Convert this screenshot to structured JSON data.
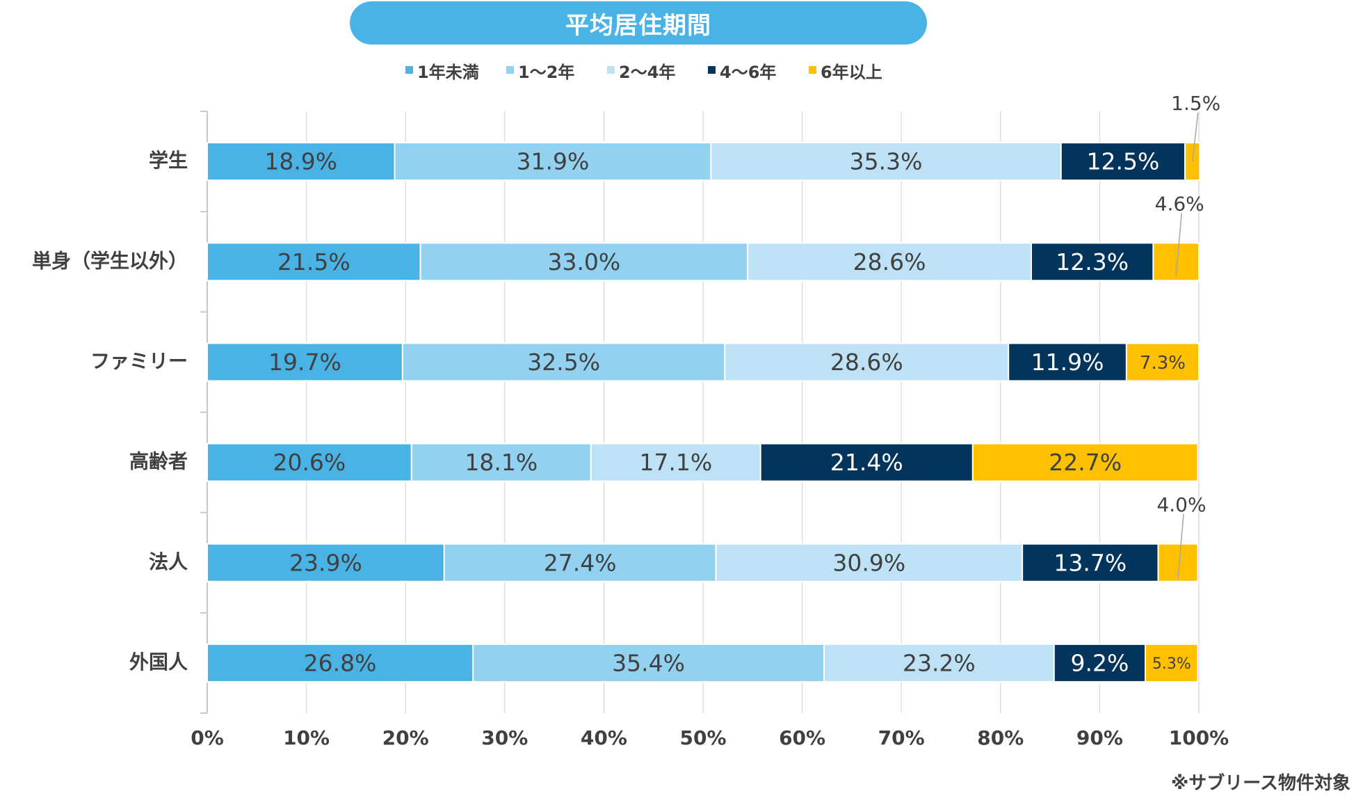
{
  "footnote": "※サブリース物件対象",
  "chart_data": {
    "type": "bar",
    "orientation": "horizontal",
    "stacked": true,
    "normalized": true,
    "title": "平均居住期間",
    "categories": [
      "学生",
      "単身（学生以外）",
      "ファミリー",
      "高齢者",
      "法人",
      "外国人"
    ],
    "series": [
      {
        "name": "1年未満",
        "color": "#4AB3E6",
        "label_color": "#404040",
        "values": [
          18.9,
          21.5,
          19.7,
          20.6,
          23.9,
          26.8
        ]
      },
      {
        "name": "1〜2年",
        "color": "#92D1EF",
        "label_color": "#404040",
        "values": [
          31.9,
          33.0,
          32.5,
          18.1,
          27.4,
          35.4
        ]
      },
      {
        "name": "2〜4年",
        "color": "#BEE2F5",
        "label_color": "#404040",
        "values": [
          35.3,
          28.6,
          28.6,
          17.1,
          30.9,
          23.2
        ]
      },
      {
        "name": "4〜6年",
        "color": "#02345C",
        "label_color": "#ffffff",
        "values": [
          12.5,
          12.3,
          11.9,
          21.4,
          13.7,
          9.2
        ]
      },
      {
        "name": "6年以上",
        "color": "#FFC000",
        "label_color": "#404040",
        "values": [
          1.5,
          4.6,
          7.3,
          22.7,
          4.0,
          5.3
        ]
      }
    ],
    "outside_labels": [
      {
        "category": "学生",
        "series": "6年以上"
      },
      {
        "category": "単身（学生以外）",
        "series": "6年以上"
      },
      {
        "category": "法人",
        "series": "6年以上"
      }
    ],
    "x_ticks": [
      "0%",
      "10%",
      "20%",
      "30%",
      "40%",
      "50%",
      "60%",
      "70%",
      "80%",
      "90%",
      "100%"
    ],
    "xlim": [
      0,
      100
    ],
    "xlabel": "",
    "ylabel": "",
    "grid": true,
    "legend_position": "top"
  }
}
